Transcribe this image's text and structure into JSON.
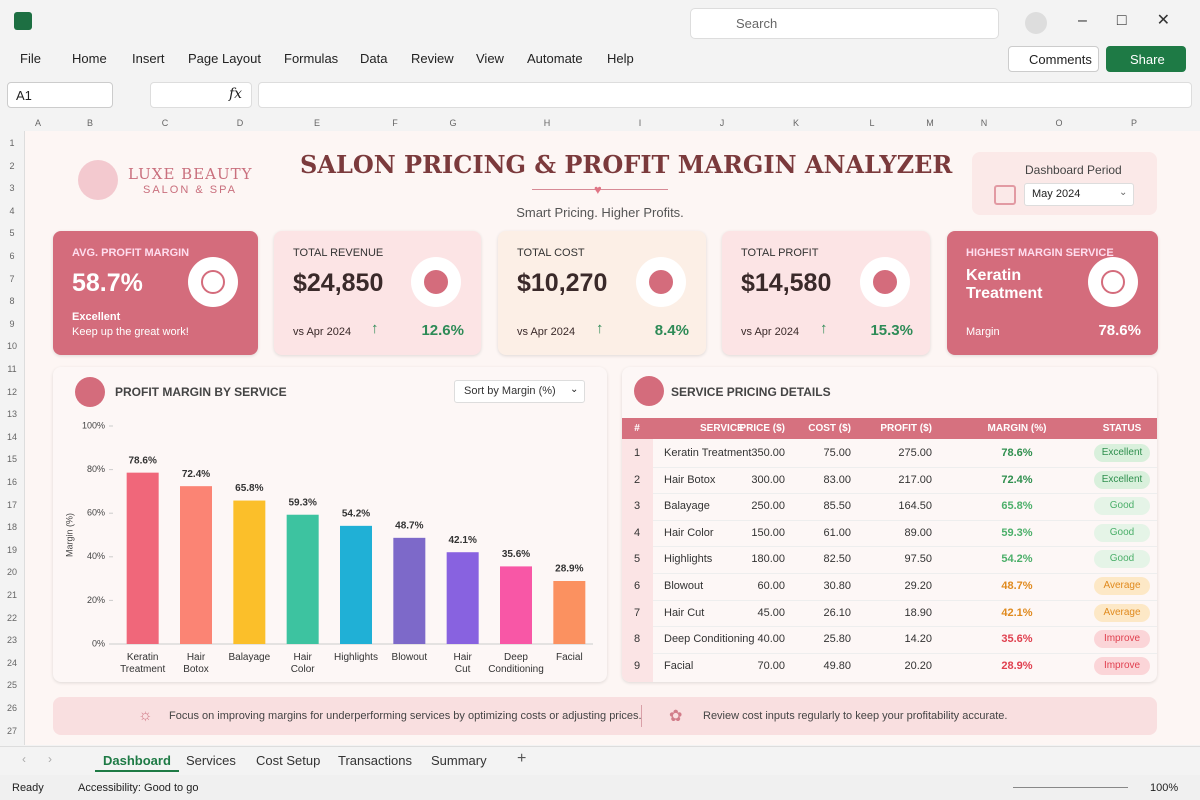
{
  "app": {
    "search": "Search",
    "menu": [
      "File",
      "Home",
      "Insert",
      "Page Layout",
      "Formulas",
      "Data",
      "Review",
      "View",
      "Automate",
      "Help"
    ],
    "comments": "Comments",
    "share": "Share",
    "name_box": "A1",
    "fx": "fx"
  },
  "columns": [
    "A",
    "B",
    "C",
    "D",
    "E",
    "F",
    "G",
    "H",
    "I",
    "J",
    "K",
    "L",
    "M",
    "N",
    "O",
    "P"
  ],
  "rows": [
    1,
    2,
    3,
    4,
    5,
    6,
    7,
    8,
    9,
    10,
    11,
    12,
    13,
    14,
    15,
    16,
    17,
    18,
    19,
    20,
    21,
    22,
    23,
    24,
    25,
    26,
    27
  ],
  "header": {
    "brand": "LUXE BEAUTY",
    "brand_sub": "SALON & SPA",
    "title": "SALON PRICING & PROFIT MARGIN ANALYZER",
    "subtitle": "Smart Pricing. Higher Profits.",
    "period_label": "Dashboard Period",
    "period": "May 2024"
  },
  "kpis": [
    {
      "label": "AVG. PROFIT MARGIN",
      "value": "58.7%",
      "note": "Excellent",
      "sub": "Keep up the great work!"
    },
    {
      "label": "TOTAL REVENUE",
      "value": "$24,850",
      "sub": "vs Apr 2024",
      "change": "12.6%"
    },
    {
      "label": "TOTAL COST",
      "value": "$10,270",
      "sub": "vs Apr 2024",
      "change": "8.4%"
    },
    {
      "label": "TOTAL PROFIT",
      "value": "$14,580",
      "sub": "vs Apr 2024",
      "change": "15.3%"
    },
    {
      "label": "HIGHEST MARGIN SERVICE",
      "value": "Keratin Treatment",
      "sub": "Margin",
      "change": "78.6%"
    }
  ],
  "chart_data": {
    "type": "bar",
    "title": "PROFIT MARGIN BY SERVICE",
    "sort": "Sort by Margin (%)",
    "y_label": "Margin (%)",
    "categories": [
      "Keratin Treatment",
      "Hair Botox",
      "Balayage",
      "Hair Color",
      "Highlights",
      "Blowout",
      "Hair Cut",
      "Deep Conditioning",
      "Facial"
    ],
    "values": [
      78.6,
      72.4,
      65.8,
      59.3,
      54.2,
      48.7,
      42.1,
      35.6,
      28.9
    ],
    "value_labels": [
      "78.6%",
      "72.4%",
      "65.8%",
      "59.3%",
      "54.2%",
      "48.7%",
      "42.1%",
      "35.6%",
      "28.9%"
    ],
    "colors": [
      "#f0677a",
      "#fb8474",
      "#fbbf2a",
      "#3dc3a0",
      "#20b0d6",
      "#7d69c9",
      "#8862e0",
      "#f857a6",
      "#fb9160"
    ],
    "ylim": [
      0,
      100
    ],
    "yticks": [
      {
        "value": 0,
        "label": "0%"
      },
      {
        "value": 20,
        "label": "20%"
      },
      {
        "value": 40,
        "label": "40%"
      },
      {
        "value": 60,
        "label": "60%"
      },
      {
        "value": 80,
        "label": "80%"
      },
      {
        "value": 100,
        "label": "100%"
      }
    ]
  },
  "table": {
    "title": "SERVICE PRICING DETAILS",
    "columns": [
      "#",
      "SERVICE",
      "PRICE ($)",
      "COST ($)",
      "PROFIT ($)",
      "MARGIN (%)",
      "STATUS"
    ],
    "rows": [
      [
        "1",
        "Keratin Treatment",
        "350.00",
        "75.00",
        "275.00",
        "78.6%",
        "Excellent"
      ],
      [
        "2",
        "Hair Botox",
        "300.00",
        "83.00",
        "217.00",
        "72.4%",
        "Excellent"
      ],
      [
        "3",
        "Balayage",
        "250.00",
        "85.50",
        "164.50",
        "65.8%",
        "Good"
      ],
      [
        "4",
        "Hair Color",
        "150.00",
        "61.00",
        "89.00",
        "59.3%",
        "Good"
      ],
      [
        "5",
        "Highlights",
        "180.00",
        "82.50",
        "97.50",
        "54.2%",
        "Good"
      ],
      [
        "6",
        "Blowout",
        "60.00",
        "30.80",
        "29.20",
        "48.7%",
        "Average"
      ],
      [
        "7",
        "Hair Cut",
        "45.00",
        "26.10",
        "18.90",
        "42.1%",
        "Average"
      ],
      [
        "8",
        "Deep Conditioning",
        "40.00",
        "25.80",
        "14.20",
        "35.6%",
        "Improve"
      ],
      [
        "9",
        "Facial",
        "70.00",
        "49.80",
        "20.20",
        "28.9%",
        "Improve"
      ]
    ],
    "status_colors": [
      "#2f8f4e",
      "#2f8f4e",
      "#4caf6a",
      "#4caf6a",
      "#4caf6a",
      "#e08a1e",
      "#e08a1e",
      "#e0404f",
      "#e0404f"
    ],
    "status_fills": [
      "#d9f0dc",
      "#d9f0dc",
      "#e5f4e7",
      "#e5f4e7",
      "#e5f4e7",
      "#fde8c6",
      "#fde8c6",
      "#fbd5d8",
      "#fbd5d8"
    ]
  },
  "tips": [
    "Focus on improving margins for underperforming services by optimizing costs or adjusting prices.",
    "Review cost inputs regularly to keep your profitability accurate."
  ],
  "tabs": [
    "Dashboard",
    "Services",
    "Cost Setup",
    "Transactions",
    "Summary"
  ],
  "status": {
    "ready": "Ready",
    "accessibility": "Accessibility: Good to go",
    "zoom": "100%"
  }
}
